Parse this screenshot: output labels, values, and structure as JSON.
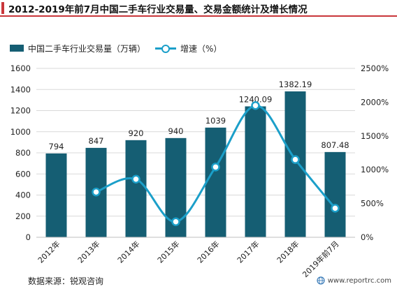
{
  "title": "2012-2019年前7月中国二手车行业交易量、交易金额统计及增长情况",
  "legend": {
    "bar_label": "中国二手车行业交易量（万辆）",
    "line_label": "增速（%）"
  },
  "footer": {
    "source": "数据来源：锐观咨询",
    "site": "www.reportrc.com"
  },
  "colors": {
    "bar": "#155e73",
    "line": "#1b9fc9",
    "accent": "#c9363a"
  },
  "chart_data": {
    "type": "bar",
    "categories": [
      "2012年",
      "2013年",
      "2014年",
      "2015年",
      "2016年",
      "2017年",
      "2018年",
      "2019年前7月"
    ],
    "series": [
      {
        "name": "中国二手车行业交易量（万辆）",
        "type": "bar",
        "axis": "left",
        "values": [
          794,
          847,
          920,
          940,
          1039,
          1240.09,
          1382.19,
          807.48
        ],
        "labels": [
          "794",
          "847",
          "920",
          "940",
          "1039",
          "1240.09",
          "1382.19",
          "807.48"
        ]
      },
      {
        "name": "增速（%）",
        "type": "line",
        "axis": "right",
        "smooth": true,
        "values": [
          null,
          670,
          860,
          230,
          1040,
          1950,
          1150,
          430
        ]
      }
    ],
    "y_left": {
      "min": 0,
      "max": 1600,
      "ticks": [
        "0",
        "200",
        "400",
        "600",
        "800",
        "1000",
        "1200",
        "1400",
        "1600"
      ]
    },
    "y_right": {
      "min": 0,
      "max": 2500,
      "ticks": [
        "0%",
        "500%",
        "1000%",
        "1500%",
        "2000%",
        "2500%"
      ]
    },
    "grid": true,
    "legend_position": "top-left"
  }
}
